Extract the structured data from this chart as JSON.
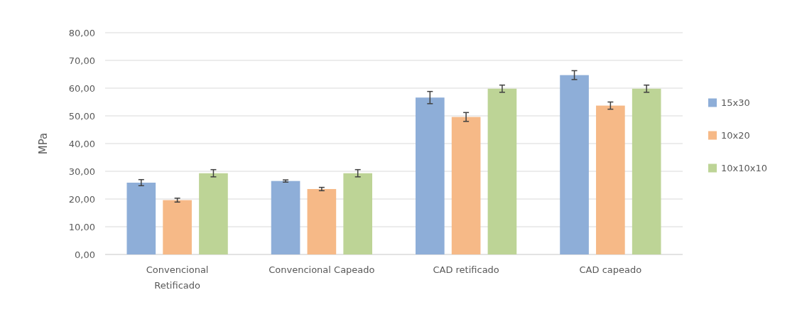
{
  "chart_data": {
    "type": "bar",
    "ylabel": "MPa",
    "categories": [
      "Convencional Retificado",
      "Convencional Capeado",
      "CAD retificado",
      "CAD capeado"
    ],
    "series": [
      {
        "name": "15x30",
        "color": "#8eaed8",
        "values": [
          25.9,
          26.5,
          56.6,
          64.7
        ],
        "errors": [
          1.1,
          0.4,
          2.2,
          1.6
        ]
      },
      {
        "name": "10x20",
        "color": "#f6b987",
        "values": [
          19.6,
          23.6,
          49.6,
          53.7
        ],
        "errors": [
          0.7,
          0.6,
          1.6,
          1.3
        ]
      },
      {
        "name": "10x10x10",
        "color": "#bdd496",
        "values": [
          29.3,
          29.3,
          59.8,
          59.8
        ],
        "errors": [
          1.3,
          1.3,
          1.3,
          1.3
        ]
      }
    ],
    "ylim": [
      0,
      80
    ],
    "yticks": [
      {
        "value": 0,
        "label": "0,00"
      },
      {
        "value": 10,
        "label": "10,00"
      },
      {
        "value": 20,
        "label": "20,00"
      },
      {
        "value": 30,
        "label": "30,00"
      },
      {
        "value": 40,
        "label": "40,00"
      },
      {
        "value": 50,
        "label": "50,00"
      },
      {
        "value": 60,
        "label": "60,00"
      },
      {
        "value": 70,
        "label": "70,00"
      },
      {
        "value": 80,
        "label": "80,00"
      }
    ],
    "grid": "y",
    "legend": "right"
  }
}
